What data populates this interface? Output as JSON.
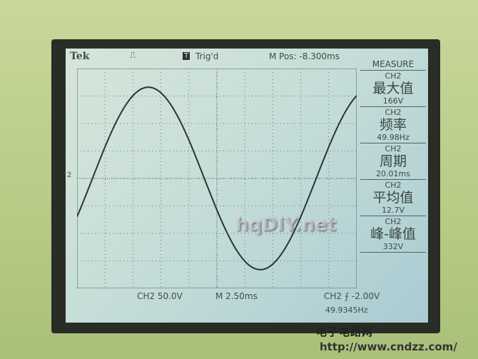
{
  "header": {
    "brand": "Tek",
    "trigger_badge": "T",
    "trigger_status": "Trig'd",
    "m_pos": "M Pos: -8.300ms"
  },
  "measure": {
    "title": "MEASURE",
    "items": [
      {
        "channel": "CH2",
        "name": "最大值",
        "value": "166V"
      },
      {
        "channel": "CH2",
        "name": "频率",
        "value": "49.98Hz"
      },
      {
        "channel": "CH2",
        "name": "周期",
        "value": "20.01ms"
      },
      {
        "channel": "CH2",
        "name": "平均值",
        "value": "12.7V"
      },
      {
        "channel": "CH2",
        "name": "峰-峰值",
        "value": "332V"
      }
    ]
  },
  "footer": {
    "ch_scale": "CH2  50.0V",
    "timebase": "M 2.50ms",
    "trigger": "CH2 ⨍ -2.00V",
    "trigger_freq": "49.9345Hz"
  },
  "marker": "2",
  "watermarks": {
    "site_cn": "电子电路网",
    "url": "http://www.cndzz.com/",
    "overlay": "hqDIY.net"
  },
  "colors": {
    "screen": "#c8dfd8",
    "trace": "#2c3434",
    "case": "#b9cc8c"
  }
}
